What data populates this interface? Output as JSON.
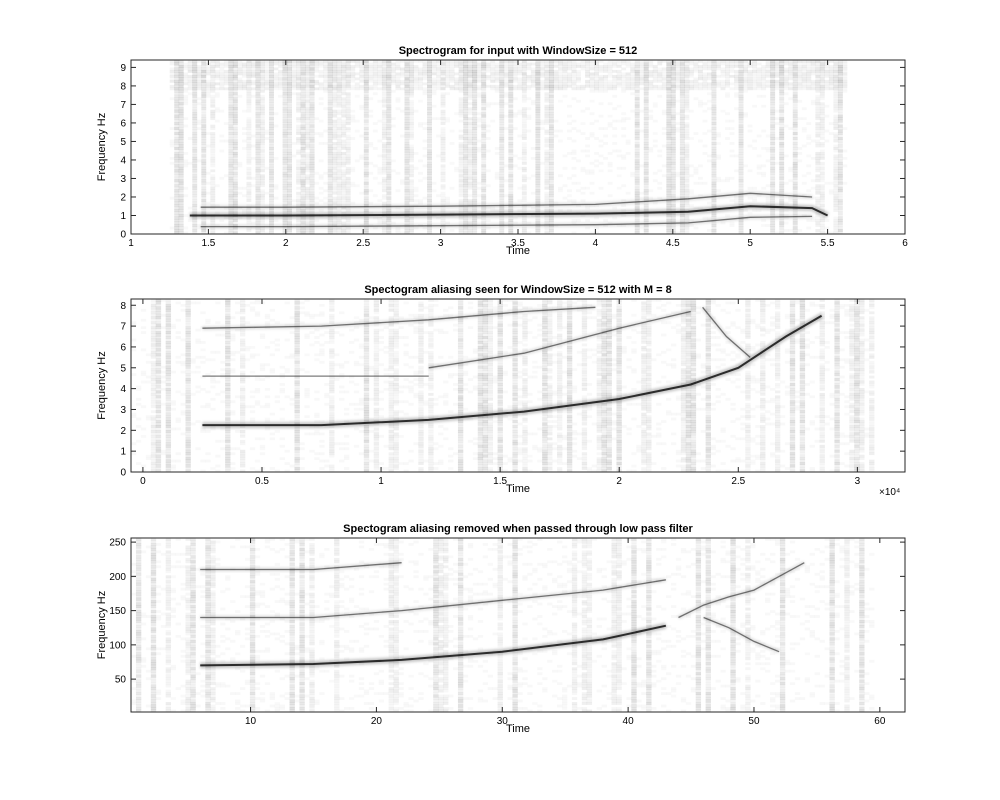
{
  "chart_data": [
    {
      "type": "heatmap",
      "title": "Spectrogram for input with WindowSize = 512",
      "xlabel": "Time",
      "ylabel": "Frequency Hz",
      "xlim": [
        1,
        6
      ],
      "ylim": [
        0,
        9.4
      ],
      "xticks": [
        "1",
        "1.5",
        "2",
        "2.5",
        "3",
        "3.5",
        "4",
        "4.5",
        "5",
        "5.5",
        "6"
      ],
      "yticks": [
        "0",
        "1",
        "2",
        "3",
        "4",
        "5",
        "6",
        "7",
        "8",
        "9"
      ],
      "exponent": "",
      "colormap": "gray-reversed",
      "dark_tracks": [
        {
          "name": "",
          "points": [
            [
              1.38,
              1.0
            ],
            [
              2,
              1.0
            ],
            [
              3,
              1.05
            ],
            [
              4,
              1.1
            ],
            [
              4.6,
              1.2
            ],
            [
              5.0,
              1.5
            ],
            [
              5.4,
              1.4
            ],
            [
              5.5,
              1.0
            ]
          ]
        },
        {
          "name": "",
          "points": [
            [
              1.45,
              0.4
            ],
            [
              2,
              0.4
            ],
            [
              3,
              0.45
            ],
            [
              4,
              0.5
            ],
            [
              4.6,
              0.6
            ],
            [
              5.0,
              0.9
            ],
            [
              5.4,
              0.95
            ]
          ]
        },
        {
          "name": "",
          "points": [
            [
              1.45,
              1.45
            ],
            [
              2,
              1.45
            ],
            [
              3,
              1.5
            ],
            [
              4,
              1.6
            ],
            [
              4.6,
              1.9
            ],
            [
              5.0,
              2.2
            ],
            [
              5.4,
              2.0
            ]
          ]
        }
      ]
    },
    {
      "type": "heatmap",
      "title": "Spectogram  aliasing seen for WindowSize = 512 with M = 8",
      "xlabel": "Time",
      "ylabel": "Frequency Hz",
      "xlim": [
        -0.05,
        3.2
      ],
      "ylim": [
        0,
        8.3
      ],
      "xticks": [
        "0",
        "0.5",
        "1",
        "1.5",
        "2",
        "2.5",
        "3"
      ],
      "yticks": [
        "0",
        "1",
        "2",
        "3",
        "4",
        "5",
        "6",
        "7",
        "8"
      ],
      "exponent": "×10⁴",
      "colormap": "gray-reversed",
      "dark_tracks": [
        {
          "name": "",
          "points": [
            [
              0.25,
              2.25
            ],
            [
              0.75,
              2.25
            ],
            [
              1.2,
              2.5
            ],
            [
              1.6,
              2.9
            ],
            [
              2.0,
              3.5
            ],
            [
              2.3,
              4.2
            ],
            [
              2.5,
              5.0
            ],
            [
              2.7,
              6.5
            ],
            [
              2.85,
              7.5
            ]
          ]
        },
        {
          "name": "",
          "points": [
            [
              0.25,
              6.9
            ],
            [
              0.75,
              7.0
            ],
            [
              1.2,
              7.3
            ],
            [
              1.6,
              7.7
            ],
            [
              1.9,
              7.9
            ]
          ]
        },
        {
          "name": "",
          "points": [
            [
              1.2,
              5.0
            ],
            [
              1.6,
              5.7
            ],
            [
              2.0,
              6.9
            ],
            [
              2.3,
              7.7
            ]
          ]
        },
        {
          "name": "",
          "points": [
            [
              2.35,
              7.9
            ],
            [
              2.45,
              6.5
            ],
            [
              2.55,
              5.5
            ]
          ]
        },
        {
          "name": "",
          "points": [
            [
              0.25,
              4.6
            ],
            [
              0.8,
              4.6
            ],
            [
              1.2,
              4.6
            ]
          ]
        }
      ]
    },
    {
      "type": "heatmap",
      "title": "Spectogram  aliasing removed when passed through low pass filter",
      "xlabel": "Time",
      "ylabel": "Frequency Hz",
      "xlim": [
        0.5,
        62
      ],
      "ylim": [
        2,
        256
      ],
      "xticks": [
        "10",
        "20",
        "30",
        "40",
        "50",
        "60"
      ],
      "yticks": [
        "50",
        "100",
        "150",
        "200",
        "250"
      ],
      "exponent": "",
      "colormap": "gray-reversed",
      "dark_tracks": [
        {
          "name": "",
          "points": [
            [
              6,
              70
            ],
            [
              15,
              72
            ],
            [
              22,
              78
            ],
            [
              30,
              90
            ],
            [
              38,
              108
            ],
            [
              43,
              128
            ]
          ]
        },
        {
          "name": "",
          "points": [
            [
              44,
              140
            ],
            [
              46,
              158
            ],
            [
              48,
              170
            ],
            [
              50,
              180
            ],
            [
              52,
              200
            ],
            [
              54,
              220
            ]
          ]
        },
        {
          "name": "",
          "points": [
            [
              46,
              140
            ],
            [
              48,
              125
            ],
            [
              50,
              105
            ],
            [
              52,
              90
            ]
          ]
        },
        {
          "name": "",
          "points": [
            [
              6,
              140
            ],
            [
              15,
              140
            ],
            [
              22,
              150
            ],
            [
              30,
              165
            ],
            [
              38,
              180
            ],
            [
              43,
              195
            ]
          ]
        },
        {
          "name": "",
          "points": [
            [
              6,
              210
            ],
            [
              15,
              210
            ],
            [
              22,
              220
            ]
          ]
        }
      ]
    }
  ]
}
